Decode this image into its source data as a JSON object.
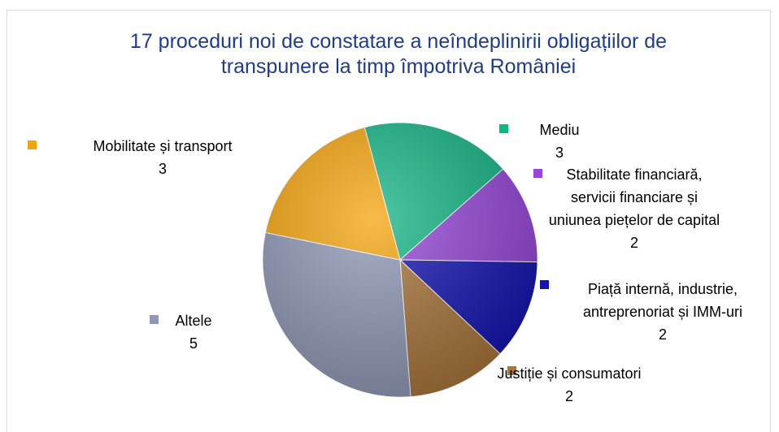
{
  "chart_data": {
    "type": "pie",
    "title": "17 proceduri noi de constatare a neîndeplinirii obligațiilor de transpunere la timp împotriva României",
    "categories": [
      "Mediu",
      "Stabilitate financiară, servicii financiare și uniunea piețelor de capital",
      "Piață internă, industrie, antreprenoriat și IMM-uri",
      "Justiție și consumatori",
      "Altele",
      "Mobilitate și transport"
    ],
    "values": [
      3,
      2,
      2,
      2,
      5,
      3
    ],
    "colors": [
      "#14b585",
      "#9646d8",
      "#1414b0",
      "#a8743a",
      "#8e98b6",
      "#f5a40c"
    ]
  }
}
